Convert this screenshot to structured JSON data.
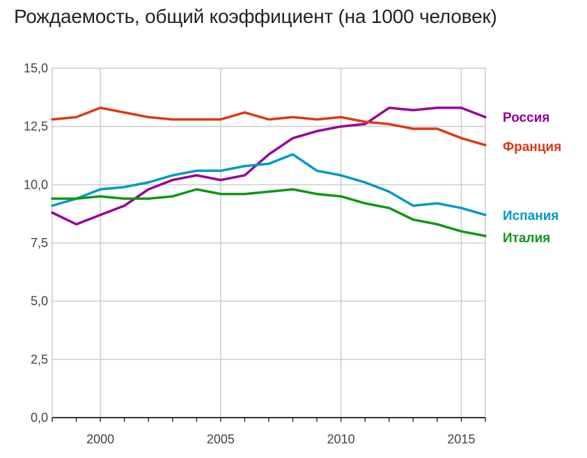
{
  "chart_data": {
    "type": "line",
    "title": "Рождаемость, общий коэффициент (на 1000 человек)",
    "xlabel": "",
    "ylabel": "",
    "xlim": [
      1998,
      2016
    ],
    "ylim": [
      0,
      15
    ],
    "x_ticks": [
      2000,
      2005,
      2010,
      2015
    ],
    "x_tick_labels": [
      "2000",
      "2005",
      "2010",
      "2015"
    ],
    "y_ticks": [
      0,
      2.5,
      5,
      7.5,
      10,
      12.5,
      15
    ],
    "y_tick_labels": [
      "0,0",
      "2,5",
      "5,0",
      "7,5",
      "10,0",
      "12,5",
      "15,0"
    ],
    "grid": true,
    "legend": "right",
    "x": [
      1998,
      1999,
      2000,
      2001,
      2002,
      2003,
      2004,
      2005,
      2006,
      2007,
      2008,
      2009,
      2010,
      2011,
      2012,
      2013,
      2014,
      2015,
      2016
    ],
    "series": [
      {
        "name": "Россия",
        "color": "#990099",
        "values": [
          8.8,
          8.3,
          8.7,
          9.1,
          9.8,
          10.2,
          10.4,
          10.2,
          10.4,
          11.3,
          12.0,
          12.3,
          12.5,
          12.6,
          13.3,
          13.2,
          13.3,
          13.3,
          12.9
        ]
      },
      {
        "name": "Франция",
        "color": "#dc3912",
        "values": [
          12.8,
          12.9,
          13.3,
          13.1,
          12.9,
          12.8,
          12.8,
          12.8,
          13.1,
          12.8,
          12.9,
          12.8,
          12.9,
          12.7,
          12.6,
          12.4,
          12.4,
          12.0,
          11.7
        ]
      },
      {
        "name": "Испания",
        "color": "#0099c6",
        "values": [
          9.1,
          9.4,
          9.8,
          9.9,
          10.1,
          10.4,
          10.6,
          10.6,
          10.8,
          10.9,
          11.3,
          10.6,
          10.4,
          10.1,
          9.7,
          9.1,
          9.2,
          9.0,
          8.7
        ]
      },
      {
        "name": "Италия",
        "color": "#109618",
        "values": [
          9.4,
          9.4,
          9.5,
          9.4,
          9.4,
          9.5,
          9.8,
          9.6,
          9.6,
          9.7,
          9.8,
          9.6,
          9.5,
          9.2,
          9.0,
          8.5,
          8.3,
          8.0,
          7.8
        ]
      }
    ]
  }
}
